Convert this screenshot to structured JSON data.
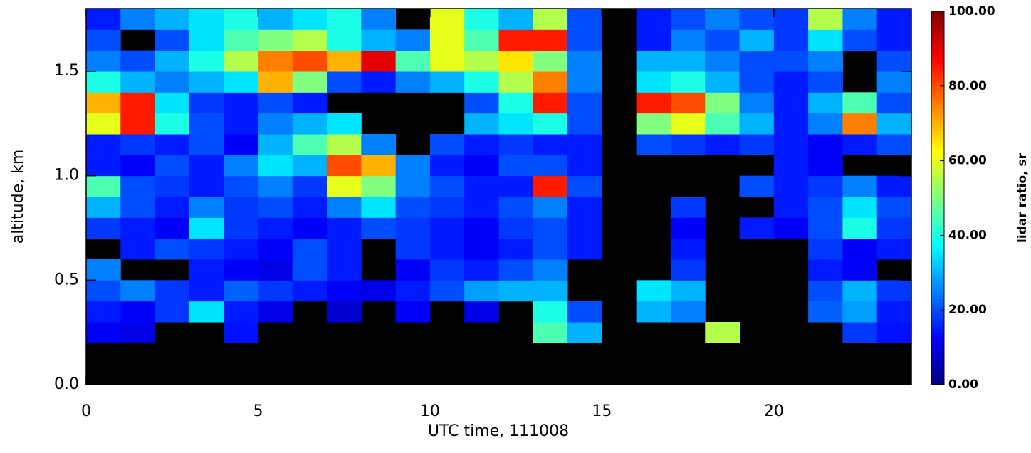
{
  "chart_data": {
    "type": "heatmap",
    "x_label": "UTC time, 111008",
    "y_label": "altitude, km",
    "colorbar_label": "lidar ratio, sr",
    "colormap": "jet",
    "xlim": [
      0,
      24
    ],
    "ylim": [
      0,
      1.8
    ],
    "xticks": [
      0,
      5,
      10,
      15,
      20
    ],
    "yticks": [
      {
        "value": 0,
        "label": "0.0"
      },
      0.5,
      {
        "value": 1,
        "label": "1.0"
      },
      1.5
    ],
    "clim": [
      0,
      100
    ],
    "cticks": [
      {
        "value": 0,
        "label": "0.00"
      },
      {
        "value": 20,
        "label": "20.00"
      },
      {
        "value": 40,
        "label": "40.00"
      },
      {
        "value": 60,
        "label": "60.00"
      },
      {
        "value": 80,
        "label": "80.00"
      },
      {
        "value": 100,
        "label": "100.00"
      }
    ],
    "x_bins": [
      0,
      1,
      2,
      3,
      4,
      5,
      6,
      7,
      8,
      9,
      10,
      11,
      12,
      13,
      14,
      15,
      16,
      17,
      18,
      19,
      20,
      21,
      22,
      23,
      24
    ],
    "y_bins": [
      0,
      0.1,
      0.2,
      0.3,
      0.4,
      0.5,
      0.6,
      0.7,
      0.8,
      0.9,
      1.0,
      1.1,
      1.2,
      1.3,
      1.4,
      1.5,
      1.6,
      1.7,
      1.8
    ],
    "values": [
      [
        null,
        null,
        null,
        null,
        null,
        null,
        null,
        null,
        null,
        null,
        null,
        null,
        null,
        null,
        null,
        null,
        null,
        null,
        null,
        null,
        null,
        null,
        null,
        null
      ],
      [
        null,
        null,
        null,
        null,
        null,
        null,
        null,
        null,
        null,
        null,
        null,
        null,
        null,
        null,
        null,
        null,
        null,
        null,
        null,
        null,
        null,
        null,
        null,
        null
      ],
      [
        12,
        10,
        null,
        null,
        14,
        null,
        null,
        null,
        null,
        null,
        null,
        null,
        null,
        45,
        30,
        null,
        null,
        null,
        55,
        null,
        null,
        null,
        18,
        14
      ],
      [
        15,
        12,
        18,
        35,
        15,
        10,
        null,
        8,
        null,
        12,
        null,
        10,
        null,
        40,
        20,
        null,
        30,
        25,
        null,
        null,
        null,
        22,
        28,
        15
      ],
      [
        20,
        25,
        18,
        15,
        22,
        18,
        15,
        12,
        10,
        15,
        20,
        28,
        30,
        30,
        null,
        null,
        35,
        30,
        null,
        null,
        null,
        20,
        30,
        18
      ],
      [
        25,
        null,
        null,
        15,
        12,
        10,
        20,
        15,
        null,
        12,
        18,
        15,
        20,
        25,
        null,
        null,
        null,
        18,
        null,
        null,
        null,
        15,
        12,
        null
      ],
      [
        null,
        15,
        20,
        18,
        15,
        12,
        20,
        15,
        null,
        18,
        15,
        12,
        15,
        20,
        15,
        null,
        null,
        15,
        null,
        null,
        null,
        18,
        12,
        15
      ],
      [
        18,
        15,
        12,
        35,
        18,
        15,
        12,
        15,
        20,
        18,
        15,
        12,
        18,
        20,
        15,
        null,
        null,
        12,
        null,
        15,
        12,
        20,
        40,
        18
      ],
      [
        30,
        20,
        15,
        25,
        18,
        20,
        15,
        25,
        35,
        20,
        18,
        15,
        20,
        25,
        15,
        null,
        null,
        18,
        null,
        null,
        15,
        20,
        35,
        20
      ],
      [
        45,
        20,
        18,
        15,
        20,
        25,
        18,
        60,
        50,
        25,
        20,
        15,
        15,
        85,
        20,
        null,
        null,
        null,
        null,
        20,
        15,
        18,
        25,
        15
      ],
      [
        15,
        12,
        20,
        15,
        25,
        35,
        30,
        80,
        70,
        25,
        15,
        12,
        20,
        20,
        15,
        null,
        null,
        null,
        null,
        null,
        15,
        12,
        null,
        null
      ],
      [
        15,
        18,
        15,
        20,
        12,
        30,
        45,
        55,
        25,
        null,
        20,
        15,
        18,
        15,
        15,
        null,
        20,
        18,
        15,
        18,
        15,
        12,
        15,
        20
      ],
      [
        60,
        85,
        40,
        20,
        15,
        25,
        30,
        35,
        null,
        null,
        null,
        30,
        35,
        40,
        20,
        null,
        50,
        60,
        45,
        30,
        15,
        25,
        75,
        30
      ],
      [
        70,
        85,
        35,
        18,
        15,
        20,
        15,
        null,
        null,
        null,
        null,
        20,
        40,
        85,
        20,
        null,
        85,
        80,
        50,
        25,
        15,
        30,
        45,
        20
      ],
      [
        40,
        30,
        25,
        30,
        35,
        70,
        50,
        20,
        15,
        25,
        30,
        40,
        55,
        75,
        25,
        null,
        35,
        40,
        30,
        20,
        15,
        20,
        null,
        25
      ],
      [
        25,
        20,
        30,
        40,
        55,
        75,
        80,
        70,
        90,
        45,
        60,
        55,
        65,
        50,
        25,
        null,
        30,
        30,
        25,
        20,
        20,
        25,
        null,
        20
      ],
      [
        20,
        null,
        20,
        35,
        45,
        50,
        55,
        40,
        30,
        25,
        60,
        45,
        85,
        85,
        20,
        null,
        15,
        25,
        20,
        30,
        18,
        35,
        20,
        15
      ],
      [
        15,
        25,
        30,
        35,
        40,
        30,
        35,
        40,
        25,
        null,
        60,
        40,
        30,
        55,
        20,
        null,
        15,
        20,
        25,
        20,
        18,
        55,
        25,
        15
      ]
    ]
  }
}
